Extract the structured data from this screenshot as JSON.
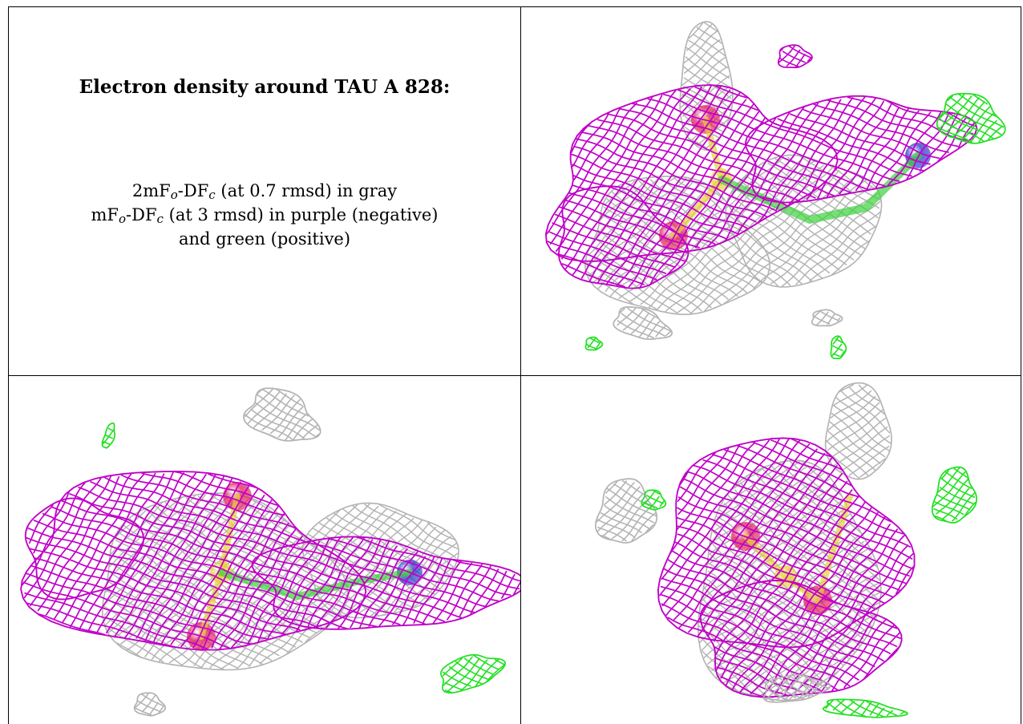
{
  "caption": {
    "title": "Electron density around TAU A 828:",
    "line1_pre": "2mF",
    "line1_sub1": "o",
    "line1_mid": "-DF",
    "line1_sub2": "c",
    "line1_post": " (at 0.7 rmsd) in gray",
    "line2_pre": "mF",
    "line2_sub1": "o",
    "line2_mid": "-DF",
    "line2_sub2": "c",
    "line2_post": " (at 3 rmsd) in purple (negative)",
    "line3": "and green (positive)"
  },
  "colors": {
    "map_2fofc": "#b4b4b4",
    "map_negative": "#c000c8",
    "map_positive": "#22e022",
    "atom_oxygen": "#e0205a",
    "atom_sulfur": "#e6d23c",
    "atom_nitrogen": "#2838c8",
    "atom_carbon": "#3cd23c"
  },
  "panels": [
    {
      "name": "view-top-right",
      "icon": "mesh-density-view-1"
    },
    {
      "name": "view-bottom-left",
      "icon": "mesh-density-view-2"
    },
    {
      "name": "view-bottom-right",
      "icon": "mesh-density-view-3"
    }
  ]
}
